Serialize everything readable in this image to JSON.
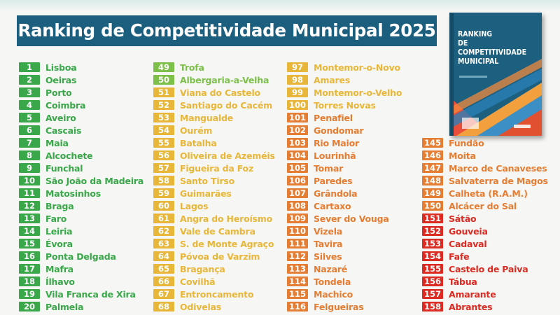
{
  "title": "Ranking de Competitividade Municipal 2025",
  "book_cover": {
    "title_lines": [
      "RANKING",
      "DE",
      "COMPETITIVIDADE",
      "MUNICIPAL"
    ]
  },
  "colors": {
    "banner": "#1b5e7e",
    "green": "#3aa84a",
    "light_green": "#7cc04a",
    "yellow": "#e8b73a",
    "orange": "#e57d32",
    "red": "#db2b22"
  },
  "columns": [
    {
      "entries": [
        {
          "rank": "1",
          "name": "Lisboa",
          "tier": "green"
        },
        {
          "rank": "2",
          "name": "Oeiras",
          "tier": "green"
        },
        {
          "rank": "3",
          "name": "Porto",
          "tier": "green"
        },
        {
          "rank": "4",
          "name": "Coimbra",
          "tier": "green"
        },
        {
          "rank": "5",
          "name": "Aveiro",
          "tier": "green"
        },
        {
          "rank": "6",
          "name": "Cascais",
          "tier": "green"
        },
        {
          "rank": "7",
          "name": "Maia",
          "tier": "green"
        },
        {
          "rank": "8",
          "name": "Alcochete",
          "tier": "green"
        },
        {
          "rank": "9",
          "name": "Funchal",
          "tier": "green"
        },
        {
          "rank": "10",
          "name": "São João da Madeira",
          "tier": "green"
        },
        {
          "rank": "11",
          "name": "Matosinhos",
          "tier": "green"
        },
        {
          "rank": "12",
          "name": "Braga",
          "tier": "green"
        },
        {
          "rank": "13",
          "name": "Faro",
          "tier": "green"
        },
        {
          "rank": "14",
          "name": "Leiria",
          "tier": "green"
        },
        {
          "rank": "15",
          "name": "Évora",
          "tier": "green"
        },
        {
          "rank": "16",
          "name": "Ponta Delgada",
          "tier": "green"
        },
        {
          "rank": "17",
          "name": "Mafra",
          "tier": "green"
        },
        {
          "rank": "18",
          "name": "Ílhavo",
          "tier": "green"
        },
        {
          "rank": "19",
          "name": "Vila Franca de Xira",
          "tier": "green"
        },
        {
          "rank": "20",
          "name": "Palmela",
          "tier": "green"
        }
      ]
    },
    {
      "entries": [
        {
          "rank": "49",
          "name": "Trofa",
          "tier": "light_green"
        },
        {
          "rank": "50",
          "name": "Albergaria-a-Velha",
          "tier": "light_green"
        },
        {
          "rank": "51",
          "name": "Viana do Castelo",
          "tier": "yellow"
        },
        {
          "rank": "52",
          "name": "Santiago do Cacém",
          "tier": "yellow"
        },
        {
          "rank": "53",
          "name": "Mangualde",
          "tier": "yellow"
        },
        {
          "rank": "54",
          "name": "Ourém",
          "tier": "yellow"
        },
        {
          "rank": "55",
          "name": "Batalha",
          "tier": "yellow"
        },
        {
          "rank": "56",
          "name": "Oliveira de Azeméis",
          "tier": "yellow"
        },
        {
          "rank": "57",
          "name": "Figueira da Foz",
          "tier": "yellow"
        },
        {
          "rank": "58",
          "name": "Santo Tirso",
          "tier": "yellow"
        },
        {
          "rank": "59",
          "name": "Guimarães",
          "tier": "yellow"
        },
        {
          "rank": "60",
          "name": "Lagos",
          "tier": "yellow"
        },
        {
          "rank": "61",
          "name": "Angra do Heroísmo",
          "tier": "yellow"
        },
        {
          "rank": "62",
          "name": "Vale de Cambra",
          "tier": "yellow"
        },
        {
          "rank": "63",
          "name": "S. de Monte Agraço",
          "tier": "yellow"
        },
        {
          "rank": "64",
          "name": "Póvoa de Varzim",
          "tier": "yellow"
        },
        {
          "rank": "65",
          "name": "Bragança",
          "tier": "yellow"
        },
        {
          "rank": "66",
          "name": "Covilhã",
          "tier": "yellow"
        },
        {
          "rank": "67",
          "name": "Entroncamento",
          "tier": "yellow"
        },
        {
          "rank": "68",
          "name": "Odivelas",
          "tier": "yellow"
        }
      ]
    },
    {
      "entries": [
        {
          "rank": "97",
          "name": "Montemor-o-Novo",
          "tier": "yellow"
        },
        {
          "rank": "98",
          "name": "Amares",
          "tier": "yellow"
        },
        {
          "rank": "99",
          "name": "Montemor-o-Velho",
          "tier": "yellow"
        },
        {
          "rank": "100",
          "name": "Torres Novas",
          "tier": "yellow"
        },
        {
          "rank": "101",
          "name": "Penafiel",
          "tier": "orange"
        },
        {
          "rank": "102",
          "name": "Gondomar",
          "tier": "orange"
        },
        {
          "rank": "103",
          "name": "Rio Maior",
          "tier": "orange"
        },
        {
          "rank": "104",
          "name": "Lourinhã",
          "tier": "orange"
        },
        {
          "rank": "105",
          "name": "Tomar",
          "tier": "orange"
        },
        {
          "rank": "106",
          "name": "Paredes",
          "tier": "orange"
        },
        {
          "rank": "107",
          "name": "Grândola",
          "tier": "orange"
        },
        {
          "rank": "108",
          "name": "Cartaxo",
          "tier": "orange"
        },
        {
          "rank": "109",
          "name": "Sever do Vouga",
          "tier": "orange"
        },
        {
          "rank": "110",
          "name": "Vizela",
          "tier": "orange"
        },
        {
          "rank": "111",
          "name": "Tavira",
          "tier": "orange"
        },
        {
          "rank": "112",
          "name": "Silves",
          "tier": "orange"
        },
        {
          "rank": "113",
          "name": "Nazaré",
          "tier": "orange"
        },
        {
          "rank": "114",
          "name": "Tondela",
          "tier": "orange"
        },
        {
          "rank": "115",
          "name": "Machico",
          "tier": "orange"
        },
        {
          "rank": "116",
          "name": "Felgueiras",
          "tier": "orange"
        }
      ]
    },
    {
      "entries": [
        {
          "rank": "145",
          "name": "Fundão",
          "tier": "orange"
        },
        {
          "rank": "146",
          "name": "Moita",
          "tier": "orange"
        },
        {
          "rank": "147",
          "name": "Marco de Canaveses",
          "tier": "orange"
        },
        {
          "rank": "148",
          "name": "Salvaterra de Magos",
          "tier": "orange"
        },
        {
          "rank": "149",
          "name": "Calheta (R.A.M.)",
          "tier": "orange"
        },
        {
          "rank": "150",
          "name": "Alcácer do Sal",
          "tier": "orange"
        },
        {
          "rank": "151",
          "name": "Sátão",
          "tier": "red"
        },
        {
          "rank": "152",
          "name": "Gouveia",
          "tier": "red"
        },
        {
          "rank": "153",
          "name": "Cadaval",
          "tier": "red"
        },
        {
          "rank": "154",
          "name": "Fafe",
          "tier": "red"
        },
        {
          "rank": "155",
          "name": "Castelo de Paiva",
          "tier": "red"
        },
        {
          "rank": "156",
          "name": "Tábua",
          "tier": "red"
        },
        {
          "rank": "157",
          "name": "Amarante",
          "tier": "red"
        },
        {
          "rank": "158",
          "name": "Abrantes",
          "tier": "red"
        }
      ]
    }
  ]
}
